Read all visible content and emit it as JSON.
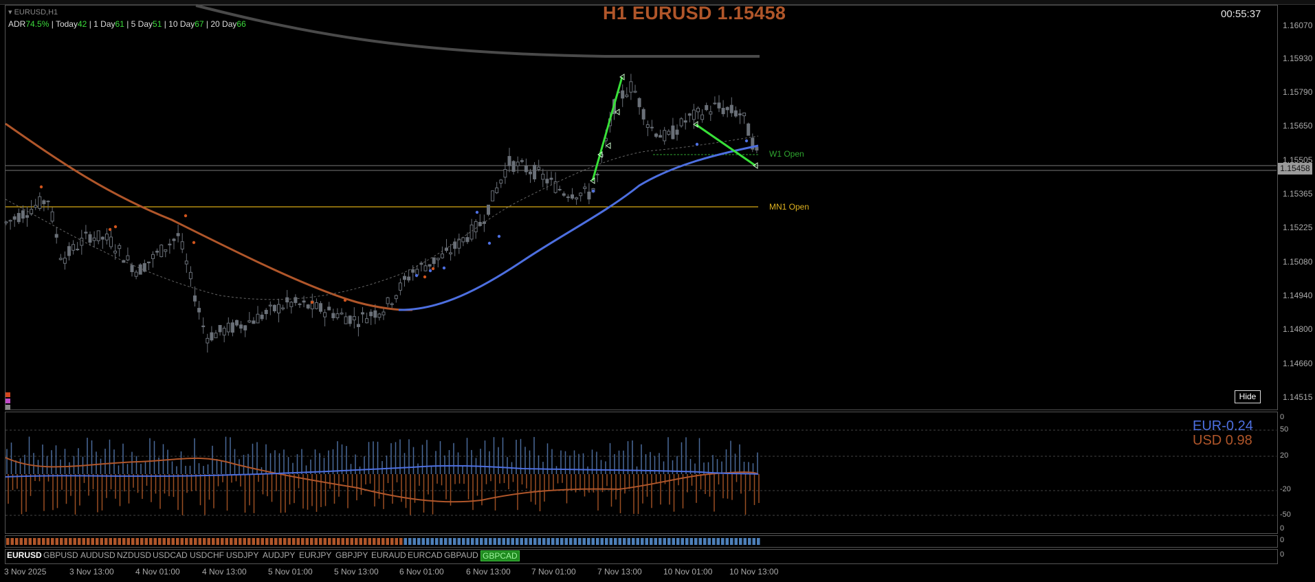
{
  "window": {
    "symbol_label": "EURUSD,H1",
    "title_text": "H1 EURUSD 1.15458",
    "countdown": "00:55:37",
    "current_price_badge": "1.15458"
  },
  "adr": {
    "adr_label": "ADR",
    "adr_value": "74.5%",
    "today_label": "| Today",
    "today_value": "42",
    "day1_label": "| 1 Day",
    "day1_value": "61",
    "day5_label": "| 5 Day",
    "day5_value": "51",
    "day10_label": "| 10 Day",
    "day10_value": "67",
    "day20_label": "|   20 Day",
    "day20_value": "66"
  },
  "levels": {
    "w1_open": "W1 Open",
    "mn1_open": "MN1 Open"
  },
  "price_axis": [
    "1.16070",
    "1.15930",
    "1.15790",
    "1.15650",
    "1.15505",
    "1.15365",
    "1.15225",
    "1.15080",
    "1.14940",
    "1.14800",
    "1.14660",
    "1.14515"
  ],
  "sub_axis": [
    "0",
    "50",
    "20",
    "-20",
    "-50",
    "0"
  ],
  "strip_axis": [
    "0"
  ],
  "tabs_axis": [
    "0"
  ],
  "hide_label": "Hide",
  "currency_strength": {
    "eur_label": "EUR",
    "eur_value": "-0.24",
    "usd_label": "USD",
    "usd_value": "0.98"
  },
  "pair_tabs": [
    "EURUSD",
    "GBPUSD",
    "AUDUSD",
    "NZDUSD",
    "USDCAD",
    "USDCHF",
    "USDJPY",
    "AUDJPY",
    "EURJPY",
    "GBPJPY",
    "EURAUD",
    "EURCAD",
    "GBPAUD",
    "GBPCAD"
  ],
  "active_tab": "EURUSD",
  "highlighted_tab": "GBPCAD",
  "time_axis": [
    "3 Nov 2025",
    "3 Nov 13:00",
    "4 Nov 01:00",
    "4 Nov 13:00",
    "5 Nov 01:00",
    "5 Nov 13:00",
    "6 Nov 01:00",
    "6 Nov 13:00",
    "7 Nov 01:00",
    "7 Nov 13:00",
    "10 Nov 01:00",
    "10 Nov 13:00"
  ],
  "colors": {
    "background": "#000000",
    "title": "#b0562a",
    "adr_values": "#3cdc3c",
    "ma_orange": "#b0562a",
    "ma_blue": "#4d6fe0",
    "ma_gray": "#4a4a4a",
    "mn1_line": "#d8a915",
    "w1_label": "#2fa52f",
    "zigzag": "#38e038",
    "candle": "#6a7078",
    "eur": "#4d6fe0",
    "usd": "#b0562a"
  },
  "icons": {
    "dropdown": "triangle-down-icon",
    "hide": "button"
  }
}
